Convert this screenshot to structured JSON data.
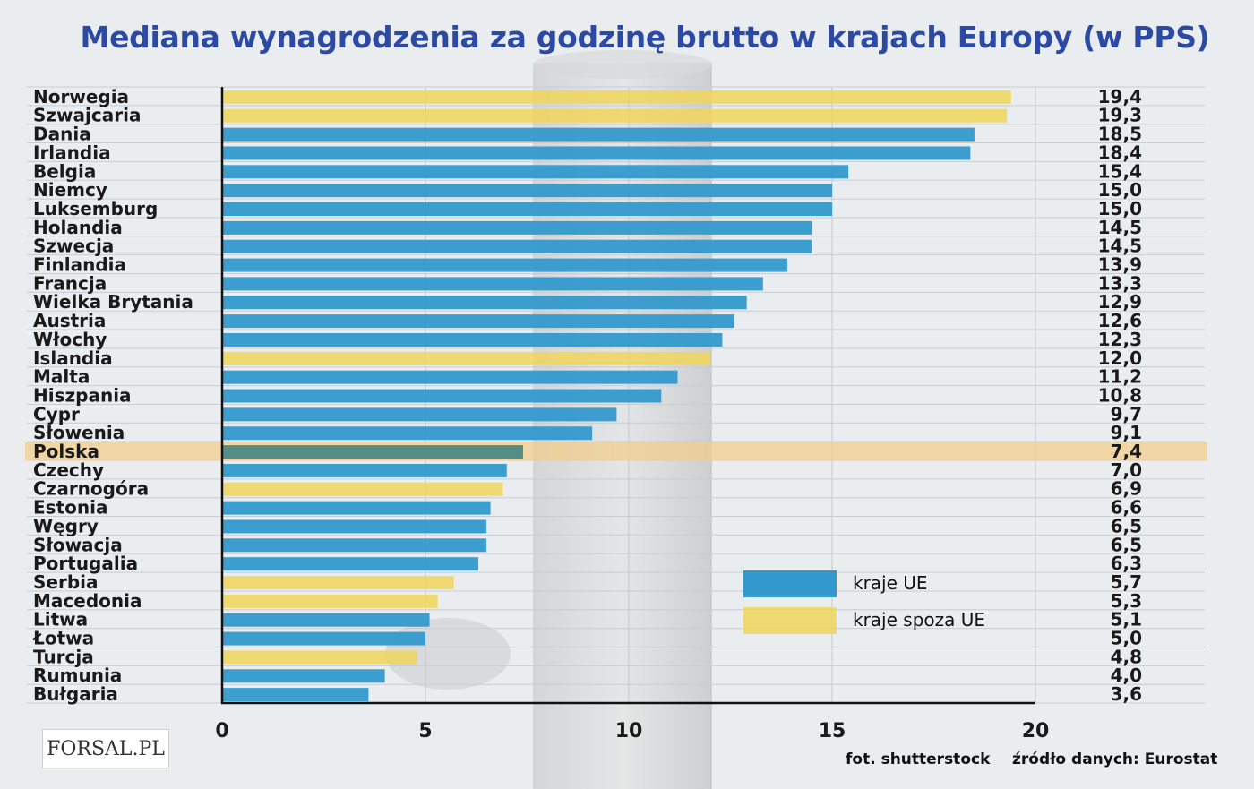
{
  "chart_data": {
    "type": "bar",
    "orientation": "horizontal",
    "title": "Mediana wynagrodzenia za godzinę brutto w krajach Europy (w PPS)",
    "categories": [
      "Norwegia",
      "Szwajcaria",
      "Dania",
      "Irlandia",
      "Belgia",
      "Niemcy",
      "Luksemburg",
      "Holandia",
      "Szwecja",
      "Finlandia",
      "Francja",
      "Wielka Brytania",
      "Austria",
      "Włochy",
      "Islandia",
      "Malta",
      "Hiszpania",
      "Cypr",
      "Słowenia",
      "Polska",
      "Czechy",
      "Czarnogóra",
      "Estonia",
      "Węgry",
      "Słowacja",
      "Portugalia",
      "Serbia",
      "Macedonia",
      "Litwa",
      "Łotwa",
      "Turcja",
      "Rumunia",
      "Bułgaria"
    ],
    "values": [
      19.4,
      19.3,
      18.5,
      18.4,
      15.4,
      15.0,
      15.0,
      14.5,
      14.5,
      13.9,
      13.3,
      12.9,
      12.6,
      12.3,
      12.0,
      11.2,
      10.8,
      9.7,
      9.1,
      7.4,
      7.0,
      6.9,
      6.6,
      6.5,
      6.5,
      6.3,
      5.7,
      5.3,
      5.1,
      5.0,
      4.8,
      4.0,
      3.6
    ],
    "value_labels": [
      "19,4",
      "19,3",
      "18,5",
      "18,4",
      "15,4",
      "15,0",
      "15,0",
      "14,5",
      "14,5",
      "13,9",
      "13,3",
      "12,9",
      "12,6",
      "12,3",
      "12,0",
      "11,2",
      "10,8",
      "9,7",
      "9,1",
      "7,4",
      "7,0",
      "6,9",
      "6,6",
      "6,5",
      "6,5",
      "6,3",
      "5,7",
      "5,3",
      "5,1",
      "5,0",
      "4,8",
      "4,0",
      "3,6"
    ],
    "groups": [
      "non-eu",
      "non-eu",
      "eu",
      "eu",
      "eu",
      "eu",
      "eu",
      "eu",
      "eu",
      "eu",
      "eu",
      "eu",
      "eu",
      "eu",
      "non-eu",
      "eu",
      "eu",
      "eu",
      "eu",
      "eu",
      "eu",
      "non-eu",
      "eu",
      "eu",
      "eu",
      "eu",
      "non-eu",
      "non-eu",
      "eu",
      "eu",
      "non-eu",
      "eu",
      "eu"
    ],
    "highlight": "Polska",
    "xlim": [
      0,
      20
    ],
    "xticks": [
      0,
      5,
      10,
      15,
      20
    ],
    "grid": true,
    "legend": [
      {
        "key": "eu",
        "label": "kraje UE",
        "color": "#3399cc"
      },
      {
        "key": "non-eu",
        "label": "kraje spoza UE",
        "color": "#f0d55a"
      }
    ],
    "legend_position": "bottom-right"
  },
  "colors": {
    "eu": "#3399cc",
    "non_eu": "#f0d55a",
    "highlight_band": "#f2cc8c",
    "title": "#2c4aa3"
  },
  "logo": "FORSAL.PL",
  "footer": {
    "photo_credit": "fot. shutterstock",
    "source": "źródło danych: Eurostat"
  }
}
